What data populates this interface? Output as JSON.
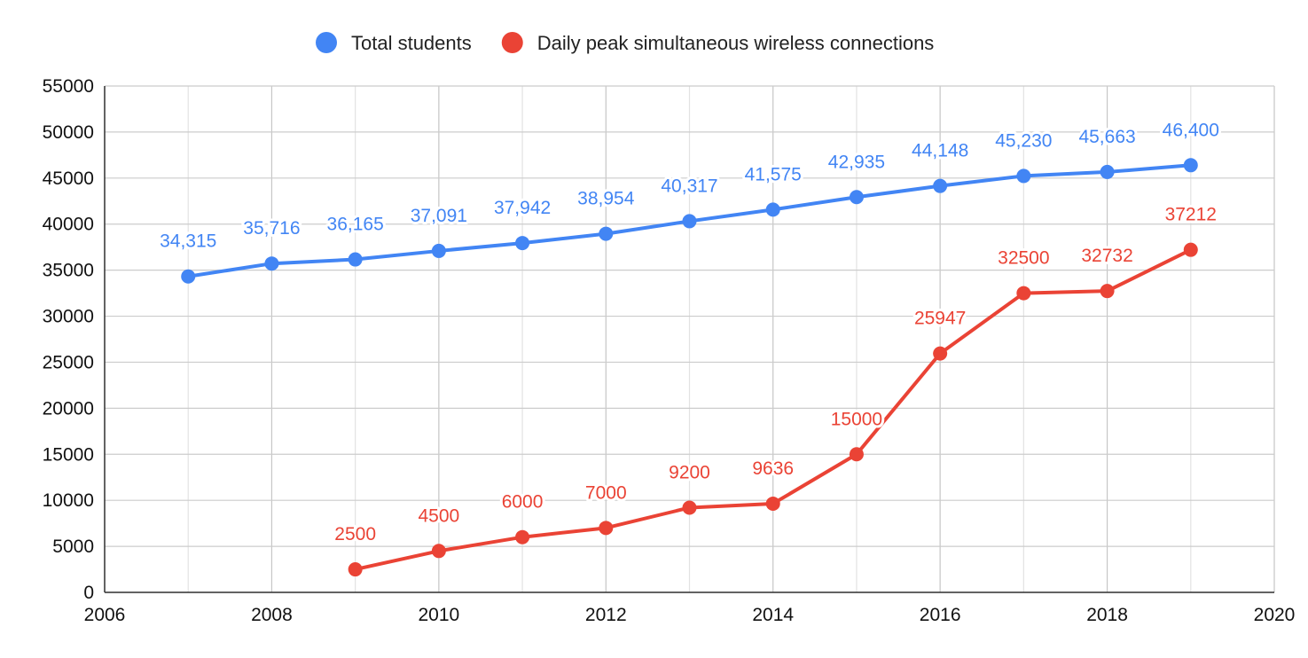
{
  "chart_data": {
    "type": "line",
    "title": "",
    "xlabel": "",
    "ylabel": "",
    "xlim": [
      2006,
      2020
    ],
    "ylim": [
      0,
      55000
    ],
    "x_ticks": [
      2006,
      2008,
      2010,
      2012,
      2014,
      2016,
      2018,
      2020
    ],
    "y_ticks": [
      0,
      5000,
      10000,
      15000,
      20000,
      25000,
      30000,
      35000,
      40000,
      45000,
      50000,
      55000
    ],
    "grid": true,
    "legend_position": "top",
    "series": [
      {
        "name": "Total students",
        "color": "#4285f4",
        "points": [
          {
            "x": 2007,
            "y": 34315,
            "label": "34,315"
          },
          {
            "x": 2008,
            "y": 35716,
            "label": "35,716"
          },
          {
            "x": 2009,
            "y": 36165,
            "label": "36,165"
          },
          {
            "x": 2010,
            "y": 37091,
            "label": "37,091"
          },
          {
            "x": 2011,
            "y": 37942,
            "label": "37,942"
          },
          {
            "x": 2012,
            "y": 38954,
            "label": "38,954"
          },
          {
            "x": 2013,
            "y": 40317,
            "label": "40,317"
          },
          {
            "x": 2014,
            "y": 41575,
            "label": "41,575"
          },
          {
            "x": 2015,
            "y": 42935,
            "label": "42,935"
          },
          {
            "x": 2016,
            "y": 44148,
            "label": "44,148"
          },
          {
            "x": 2017,
            "y": 45230,
            "label": "45,230"
          },
          {
            "x": 2018,
            "y": 45663,
            "label": "45,663"
          },
          {
            "x": 2019,
            "y": 46400,
            "label": "46,400"
          }
        ]
      },
      {
        "name": "Daily peak simultaneous wireless connections",
        "color": "#ea4335",
        "points": [
          {
            "x": 2009,
            "y": 2500,
            "label": "2500"
          },
          {
            "x": 2010,
            "y": 4500,
            "label": "4500"
          },
          {
            "x": 2011,
            "y": 6000,
            "label": "6000"
          },
          {
            "x": 2012,
            "y": 7000,
            "label": "7000"
          },
          {
            "x": 2013,
            "y": 9200,
            "label": "9200"
          },
          {
            "x": 2014,
            "y": 9636,
            "label": "9636"
          },
          {
            "x": 2015,
            "y": 15000,
            "label": "15000"
          },
          {
            "x": 2016,
            "y": 25947,
            "label": "25947"
          },
          {
            "x": 2017,
            "y": 32500,
            "label": "32500"
          },
          {
            "x": 2018,
            "y": 32732,
            "label": "32732"
          },
          {
            "x": 2019,
            "y": 37212,
            "label": "37212"
          }
        ]
      }
    ]
  }
}
